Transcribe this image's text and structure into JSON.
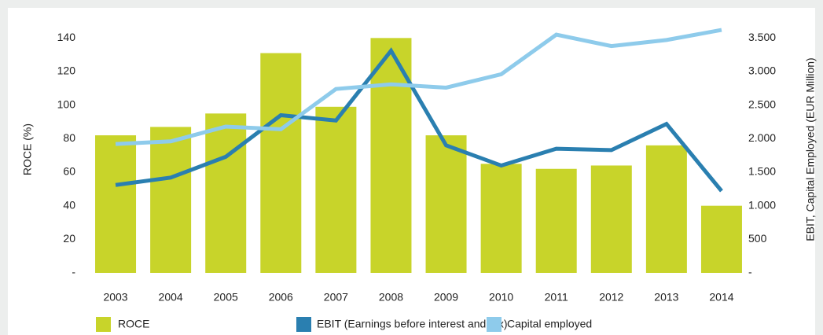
{
  "chart_data": {
    "type": "bar-line",
    "categories": [
      "2003",
      "2004",
      "2005",
      "2006",
      "2007",
      "2008",
      "2009",
      "2010",
      "2011",
      "2012",
      "2013",
      "2014"
    ],
    "series": [
      {
        "name": "ROCE",
        "type": "bar",
        "color": "#c8d42a",
        "values": [
          82,
          87,
          95,
          131,
          99,
          140,
          82,
          65,
          62,
          64,
          76,
          40
        ]
      },
      {
        "name": "EBIT (Earnings before interest and tax)",
        "type": "line",
        "axis": "y2",
        "color": "#2a7fb0",
        "values": [
          1310,
          1420,
          1730,
          2350,
          2270,
          3310,
          1900,
          1600,
          1850,
          1830,
          2220,
          1220
        ]
      },
      {
        "name": "Capital employed",
        "type": "line",
        "axis": "y2",
        "color": "#8ecbeb",
        "values": [
          1920,
          1960,
          2180,
          2140,
          2740,
          2810,
          2760,
          2960,
          3550,
          3380,
          3470,
          3620
        ]
      }
    ],
    "ylabel": "ROCE (%)",
    "y2label": "EBIT, Capital Employed (EUR Million)",
    "ylim": [
      0,
      150
    ],
    "yticks": [
      {
        "value": 0,
        "label": "-"
      },
      20,
      40,
      60,
      80,
      100,
      120,
      140
    ],
    "y2lim": [
      0,
      3750
    ],
    "y2ticks": [
      {
        "value": 0,
        "label": "-"
      },
      500,
      {
        "value": 1000,
        "label": "1.000"
      },
      {
        "value": 1500,
        "label": "1.500"
      },
      {
        "value": 2000,
        "label": "2.000"
      },
      {
        "value": 2500,
        "label": "2.500"
      },
      {
        "value": 3000,
        "label": "3.000"
      },
      {
        "value": 3500,
        "label": "3.500"
      }
    ],
    "legend": "bottom"
  }
}
